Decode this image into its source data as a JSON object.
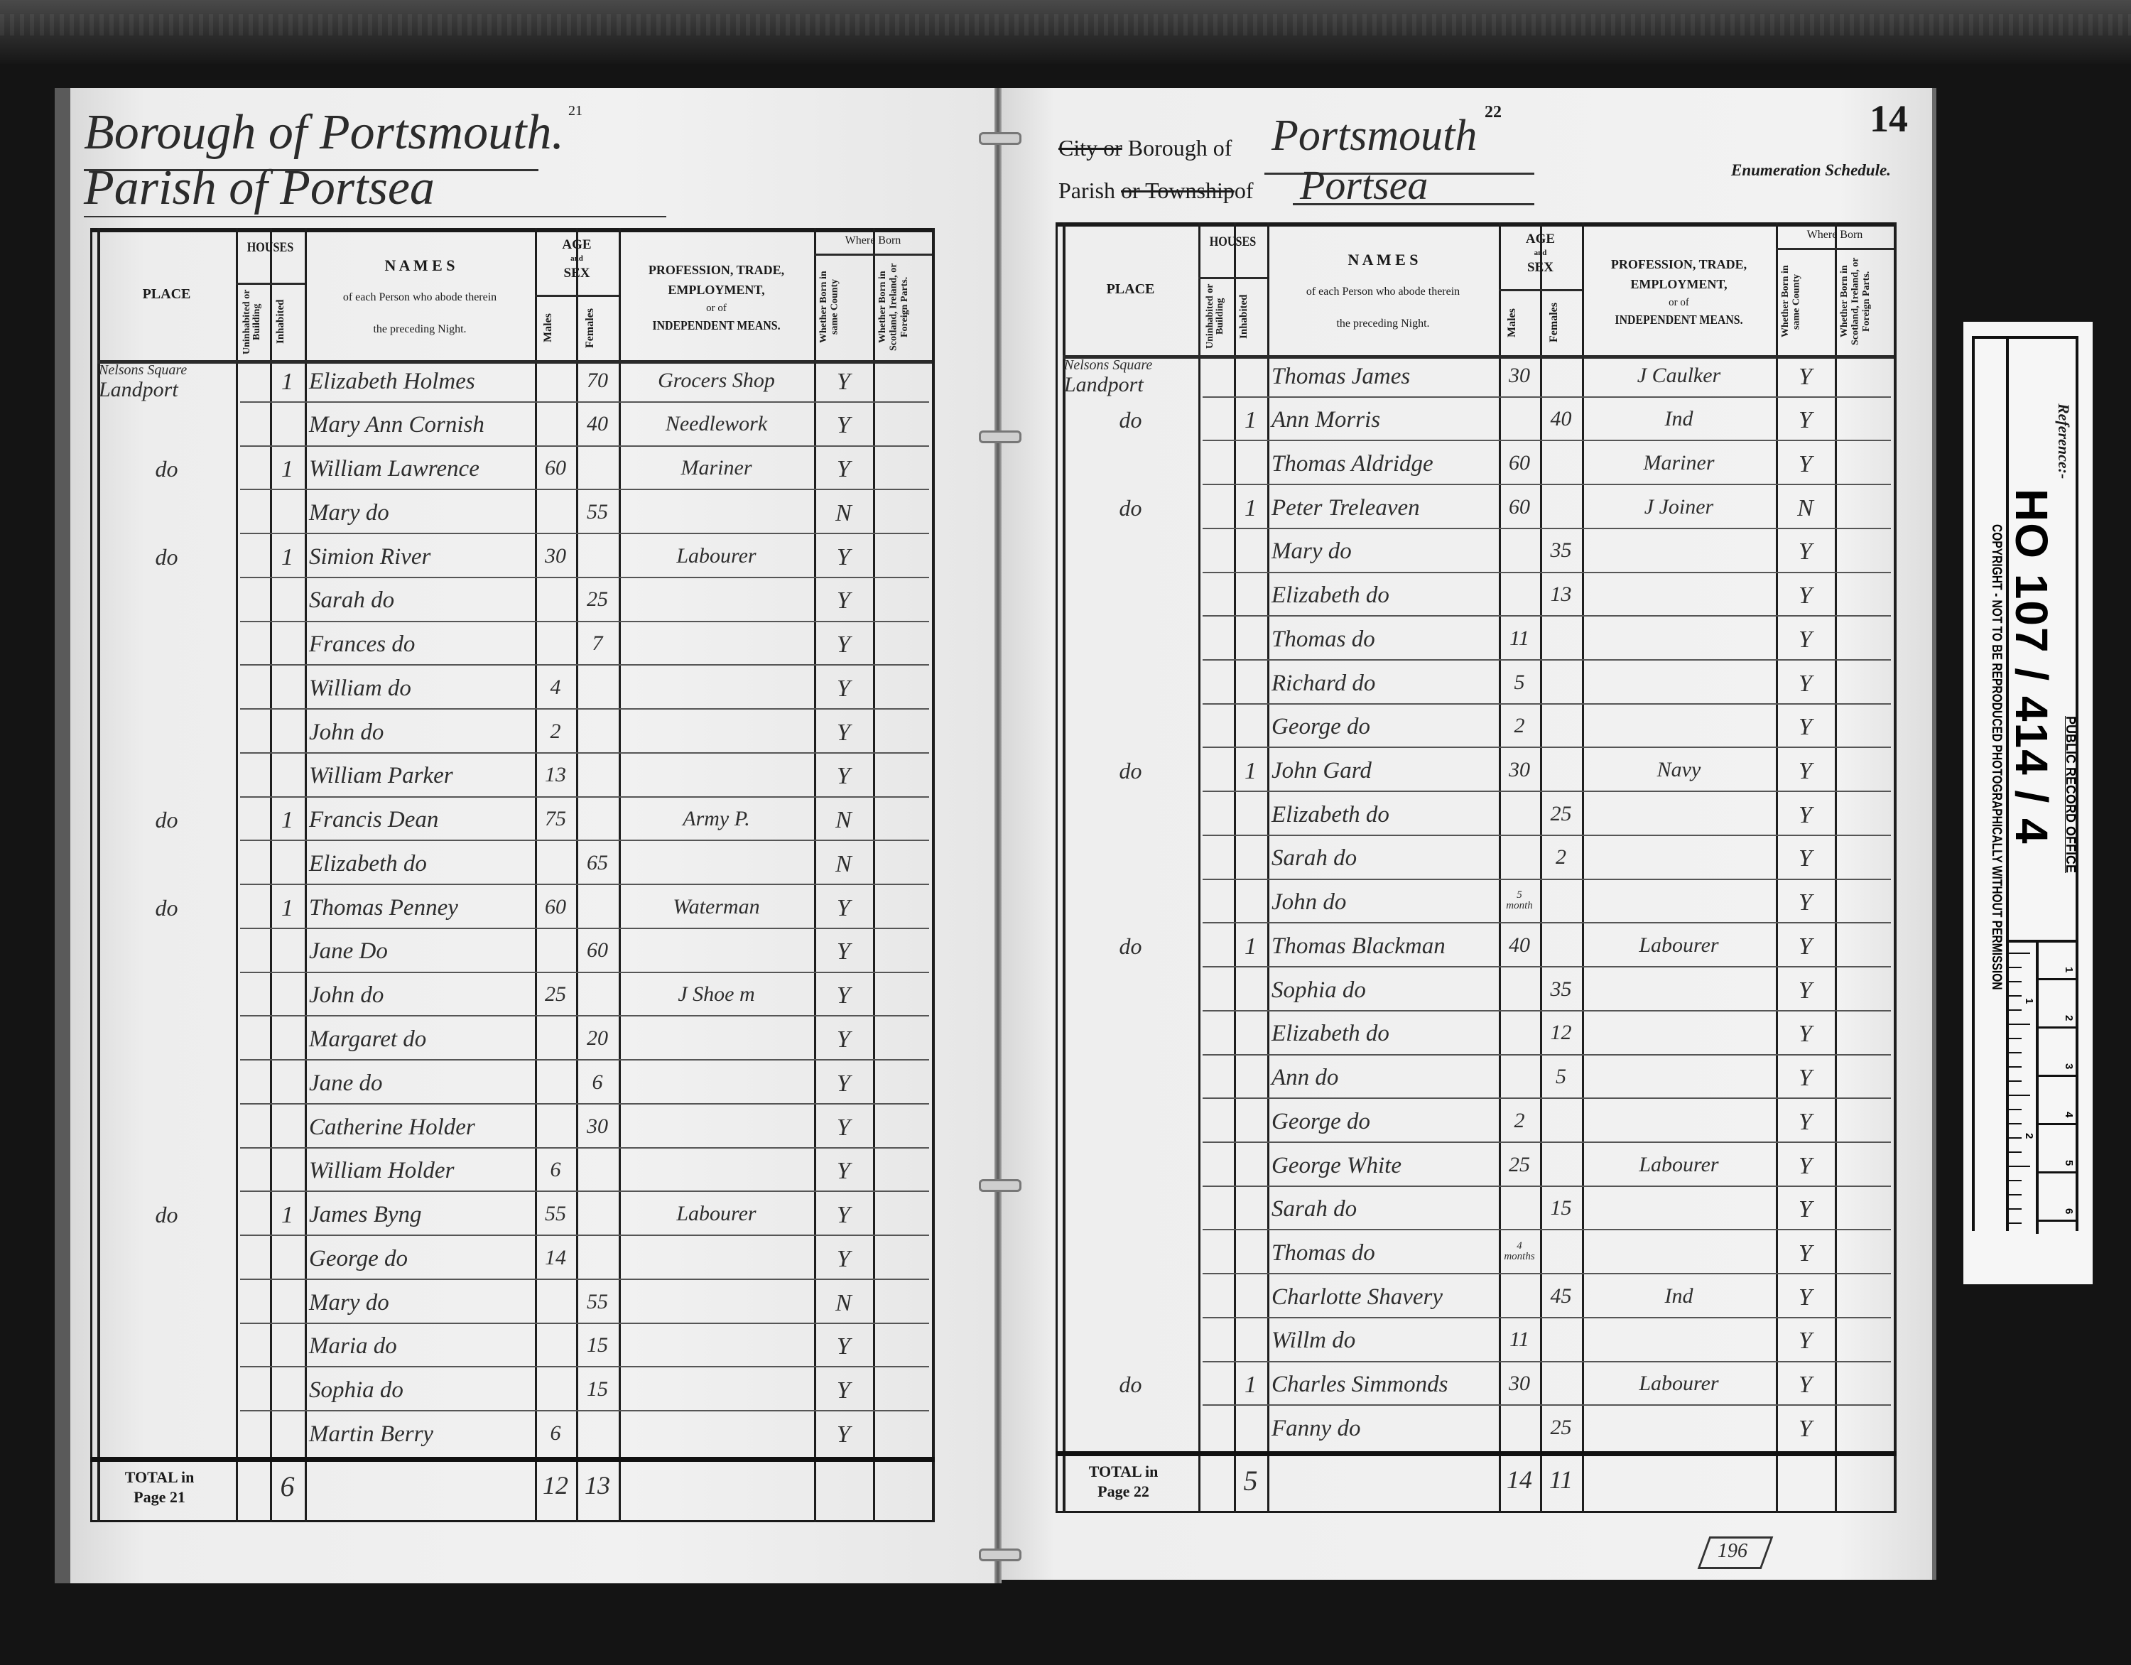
{
  "left_page": {
    "borough_line": "Borough of Portsmouth.",
    "parish_line": "Parish of Portsea",
    "page_number": "21",
    "total": {
      "label": "TOTAL in",
      "page": "Page 21",
      "houses": "6",
      "males": "12",
      "females": "13"
    },
    "rows": [
      {
        "place": [
          "Nelsons Square",
          "Landport"
        ],
        "inhabited": "1",
        "name": "Elizabeth Holmes",
        "males": "",
        "females": "70",
        "profession": "Grocers Shop",
        "born_county": "Y"
      },
      {
        "place": "",
        "inhabited": "",
        "name": "Mary Ann Cornish",
        "males": "",
        "females": "40",
        "profession": "Needlework",
        "born_county": "Y"
      },
      {
        "place": "do",
        "inhabited": "1",
        "name": "William Lawrence",
        "males": "60",
        "females": "",
        "profession": "Mariner",
        "born_county": "Y"
      },
      {
        "place": "",
        "inhabited": "",
        "name": "Mary do",
        "males": "",
        "females": "55",
        "profession": "",
        "born_county": "N"
      },
      {
        "place": "do",
        "inhabited": "1",
        "name": "Simion River",
        "males": "30",
        "females": "",
        "profession": "Labourer",
        "born_county": "Y"
      },
      {
        "place": "",
        "inhabited": "",
        "name": "Sarah do",
        "males": "",
        "females": "25",
        "profession": "",
        "born_county": "Y"
      },
      {
        "place": "",
        "inhabited": "",
        "name": "Frances do",
        "males": "",
        "females": "7",
        "profession": "",
        "born_county": "Y"
      },
      {
        "place": "",
        "inhabited": "",
        "name": "William do",
        "males": "4",
        "females": "",
        "profession": "",
        "born_county": "Y"
      },
      {
        "place": "",
        "inhabited": "",
        "name": "John do",
        "males": "2",
        "females": "",
        "profession": "",
        "born_county": "Y"
      },
      {
        "place": "",
        "inhabited": "",
        "name": "William Parker",
        "males": "13",
        "females": "",
        "profession": "",
        "born_county": "Y"
      },
      {
        "place": "do",
        "inhabited": "1",
        "name": "Francis Dean",
        "males": "75",
        "females": "",
        "profession": "Army P.",
        "born_county": "N"
      },
      {
        "place": "",
        "inhabited": "",
        "name": "Elizabeth do",
        "males": "",
        "females": "65",
        "profession": "",
        "born_county": "N"
      },
      {
        "place": "do",
        "inhabited": "1",
        "name": "Thomas Penney",
        "males": "60",
        "females": "",
        "profession": "Waterman",
        "born_county": "Y"
      },
      {
        "place": "",
        "inhabited": "",
        "name": "Jane Do",
        "males": "",
        "females": "60",
        "profession": "",
        "born_county": "Y"
      },
      {
        "place": "",
        "inhabited": "",
        "name": "John do",
        "males": "25",
        "females": "",
        "profession": "J Shoe m",
        "born_county": "Y"
      },
      {
        "place": "",
        "inhabited": "",
        "name": "Margaret do",
        "males": "",
        "females": "20",
        "profession": "",
        "born_county": "Y"
      },
      {
        "place": "",
        "inhabited": "",
        "name": "Jane do",
        "males": "",
        "females": "6",
        "profession": "",
        "born_county": "Y"
      },
      {
        "place": "",
        "inhabited": "",
        "name": "Catherine Holder",
        "males": "",
        "females": "30",
        "profession": "",
        "born_county": "Y"
      },
      {
        "place": "",
        "inhabited": "",
        "name": "William Holder",
        "males": "6",
        "females": "",
        "profession": "",
        "born_county": "Y"
      },
      {
        "place": "do",
        "inhabited": "1",
        "name": "James Byng",
        "males": "55",
        "females": "",
        "profession": "Labourer",
        "born_county": "Y"
      },
      {
        "place": "",
        "inhabited": "",
        "name": "George do",
        "males": "14",
        "females": "",
        "profession": "",
        "born_county": "Y"
      },
      {
        "place": "",
        "inhabited": "",
        "name": "Mary do",
        "males": "",
        "females": "55",
        "profession": "",
        "born_county": "N"
      },
      {
        "place": "",
        "inhabited": "",
        "name": "Maria do",
        "males": "",
        "females": "15",
        "profession": "",
        "born_county": "Y"
      },
      {
        "place": "",
        "inhabited": "",
        "name": "Sophia do",
        "males": "",
        "females": "15",
        "profession": "",
        "born_county": "Y"
      },
      {
        "place": "",
        "inhabited": "",
        "name": "Martin Berry",
        "males": "6",
        "females": "",
        "profession": "",
        "born_county": "Y"
      }
    ]
  },
  "right_page": {
    "borough_prefix_struck": "City or",
    "borough_label": "Borough of",
    "borough_value": "Portsmouth",
    "parish_label": "Parish",
    "parish_struck": "or Township",
    "parish_of": "of",
    "parish_value": "Portsea",
    "page_number": "22",
    "schedule_number": "14",
    "schedule_label": "Enumeration Schedule.",
    "total": {
      "label": "TOTAL in",
      "page": "Page 22",
      "houses": "5",
      "males": "14",
      "females": "11"
    },
    "rows": [
      {
        "place": [
          "Nelsons Square",
          "Landport"
        ],
        "inhabited": "",
        "name": "Thomas James",
        "males": "30",
        "females": "",
        "profession": "J Caulker",
        "born_county": "Y"
      },
      {
        "place": "do",
        "inhabited": "1",
        "name": "Ann Morris",
        "males": "",
        "females": "40",
        "profession": "Ind",
        "born_county": "Y"
      },
      {
        "place": "",
        "inhabited": "",
        "name": "Thomas Aldridge",
        "males": "60",
        "females": "",
        "profession": "Mariner",
        "born_county": "Y"
      },
      {
        "place": "do",
        "inhabited": "1",
        "name": "Peter Treleaven",
        "males": "60",
        "females": "",
        "profession": "J Joiner",
        "born_county": "N"
      },
      {
        "place": "",
        "inhabited": "",
        "name": "Mary do",
        "males": "",
        "females": "35",
        "profession": "",
        "born_county": "Y"
      },
      {
        "place": "",
        "inhabited": "",
        "name": "Elizabeth do",
        "males": "",
        "females": "13",
        "profession": "",
        "born_county": "Y"
      },
      {
        "place": "",
        "inhabited": "",
        "name": "Thomas do",
        "males": "11",
        "females": "",
        "profession": "",
        "born_county": "Y"
      },
      {
        "place": "",
        "inhabited": "",
        "name": "Richard do",
        "males": "5",
        "females": "",
        "profession": "",
        "born_county": "Y"
      },
      {
        "place": "",
        "inhabited": "",
        "name": "George do",
        "males": "2",
        "females": "",
        "profession": "",
        "born_county": "Y"
      },
      {
        "place": "do",
        "inhabited": "1",
        "name": "John Gard",
        "males": "30",
        "females": "",
        "profession": "Navy",
        "born_county": "Y"
      },
      {
        "place": "",
        "inhabited": "",
        "name": "Elizabeth do",
        "males": "",
        "females": "25",
        "profession": "",
        "born_county": "Y"
      },
      {
        "place": "",
        "inhabited": "",
        "name": "Sarah do",
        "males": "",
        "females": "2",
        "profession": "",
        "born_county": "Y"
      },
      {
        "place": "",
        "inhabited": "",
        "name": "John do",
        "males": "5 month",
        "females": "",
        "profession": "",
        "born_county": "Y"
      },
      {
        "place": "do",
        "inhabited": "1",
        "name": "Thomas Blackman",
        "males": "40",
        "females": "",
        "profession": "Labourer",
        "born_county": "Y"
      },
      {
        "place": "",
        "inhabited": "",
        "name": "Sophia do",
        "males": "",
        "females": "35",
        "profession": "",
        "born_county": "Y"
      },
      {
        "place": "",
        "inhabited": "",
        "name": "Elizabeth do",
        "males": "",
        "females": "12",
        "profession": "",
        "born_county": "Y"
      },
      {
        "place": "",
        "inhabited": "",
        "name": "Ann do",
        "males": "",
        "females": "5",
        "profession": "",
        "born_county": "Y"
      },
      {
        "place": "",
        "inhabited": "",
        "name": "George do",
        "males": "2",
        "females": "",
        "profession": "",
        "born_county": "Y"
      },
      {
        "place": "",
        "inhabited": "",
        "name": "George White",
        "males": "25",
        "females": "",
        "profession": "Labourer",
        "born_county": "Y"
      },
      {
        "place": "",
        "inhabited": "",
        "name": "Sarah do",
        "males": "",
        "females": "15",
        "profession": "",
        "born_county": "Y"
      },
      {
        "place": "",
        "inhabited": "",
        "name": "Thomas do",
        "males": "4 months",
        "females": "",
        "profession": "",
        "born_county": "Y"
      },
      {
        "place": "",
        "inhabited": "",
        "name": "Charlotte Shavery",
        "males": "",
        "females": "45",
        "profession": "Ind",
        "born_county": "Y"
      },
      {
        "place": "",
        "inhabited": "",
        "name": "Willm do",
        "males": "11",
        "females": "",
        "profession": "",
        "born_county": "Y"
      },
      {
        "place": "do",
        "inhabited": "1",
        "name": "Charles Simmonds",
        "males": "30",
        "females": "",
        "profession": "Labourer",
        "born_county": "Y"
      },
      {
        "place": "",
        "inhabited": "",
        "name": "Fanny do",
        "males": "",
        "females": "25",
        "profession": "",
        "born_county": "Y"
      }
    ]
  },
  "table_header": {
    "place": "PLACE",
    "houses": "HOUSES",
    "uninhabited": "Uninhabited or Building",
    "inhabited": "Inhabited",
    "names": "N A M E S",
    "names_sub1": "of each Person who abode therein",
    "names_sub2": "the preceding Night.",
    "age": "AGE",
    "age_and": "and",
    "sex": "SEX",
    "males": "Males",
    "females": "Females",
    "profession_1": "PROFESSION, TRADE,",
    "profession_2": "EMPLOYMENT,",
    "profession_3": "or of",
    "profession_4": "INDEPENDENT MEANS.",
    "where_born": "Where Born",
    "born_county": "Whether Born in same County",
    "born_abroad": "Whether Born in Scotland, Ireland, or Foreign Parts."
  },
  "reference_strip": {
    "label": "Reference:-",
    "reference": "HO 107 / 414 / 4",
    "office": "PUBLIC RECORD OFFICE",
    "copyright": "COPYRIGHT - NOT TO BE REPRODUCED PHOTOGRAPHICALLY WITHOUT PERMISSION",
    "scale_top": [
      "1",
      "2",
      "3",
      "4",
      "5",
      "6"
    ],
    "scale_bottom": [
      "1",
      "2"
    ]
  },
  "folio_stamp": "196"
}
